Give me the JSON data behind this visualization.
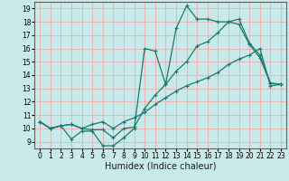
{
  "xlabel": "Humidex (Indice chaleur)",
  "ylabel": "",
  "bg_color": "#c8eaea",
  "grid_color": "#e8b8b8",
  "line_color": "#1a7a6e",
  "x": [
    0,
    1,
    2,
    3,
    4,
    5,
    6,
    7,
    8,
    9,
    10,
    11,
    12,
    13,
    14,
    15,
    16,
    17,
    18,
    19,
    20,
    21,
    22,
    23
  ],
  "line1": [
    10.5,
    10.0,
    10.2,
    9.2,
    9.8,
    9.8,
    8.7,
    8.7,
    9.3,
    10.0,
    16.0,
    15.8,
    13.3,
    17.5,
    19.2,
    18.2,
    18.2,
    18.0,
    18.0,
    17.8,
    16.3,
    15.3,
    13.4,
    13.3
  ],
  "line2": [
    10.5,
    10.0,
    10.2,
    10.3,
    10.0,
    9.9,
    9.9,
    9.3,
    10.0,
    10.1,
    11.5,
    12.5,
    13.3,
    14.3,
    15.0,
    16.2,
    16.5,
    17.2,
    18.0,
    18.2,
    16.4,
    15.5,
    13.4,
    13.3
  ],
  "line3": [
    10.5,
    10.0,
    10.2,
    10.3,
    10.0,
    10.3,
    10.5,
    10.0,
    10.5,
    10.8,
    11.2,
    11.8,
    12.3,
    12.8,
    13.2,
    13.5,
    13.8,
    14.2,
    14.8,
    15.2,
    15.5,
    16.0,
    13.2,
    13.3
  ],
  "xlim": [
    -0.5,
    23.5
  ],
  "ylim": [
    8.5,
    19.5
  ],
  "yticks": [
    9,
    10,
    11,
    12,
    13,
    14,
    15,
    16,
    17,
    18,
    19
  ],
  "xticks": [
    0,
    1,
    2,
    3,
    4,
    5,
    6,
    7,
    8,
    9,
    10,
    11,
    12,
    13,
    14,
    15,
    16,
    17,
    18,
    19,
    20,
    21,
    22,
    23
  ],
  "tick_fontsize": 5.5,
  "label_fontsize": 7.0,
  "marker": "+"
}
